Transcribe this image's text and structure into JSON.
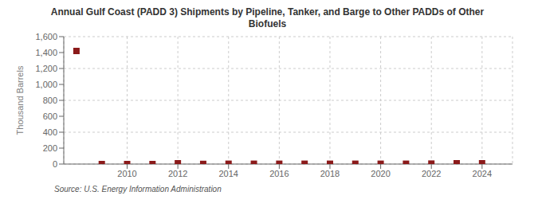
{
  "chart_data": {
    "type": "scatter",
    "title": "Annual Gulf Coast (PADD 3) Shipments by Pipeline, Tanker, and Barge to Other PADDs of Other\nBiofuels",
    "ylabel": "Thousand Barrels",
    "annotations": [
      "Source: U.S. Energy Information Administration"
    ],
    "x": [
      2008,
      2009,
      2010,
      2011,
      2012,
      2013,
      2014,
      2015,
      2016,
      2017,
      2018,
      2019,
      2020,
      2021,
      2022,
      2023,
      2024
    ],
    "values": [
      1420,
      0,
      0,
      0,
      10,
      2,
      4,
      4,
      4,
      4,
      4,
      4,
      4,
      4,
      6,
      10,
      10
    ],
    "color": "#8b1a1a",
    "marker": "square",
    "line_style": "none",
    "xlim": [
      2007.5,
      2025.2
    ],
    "xticks": [
      2010,
      2012,
      2014,
      2016,
      2018,
      2020,
      2022,
      2024
    ],
    "ylim": [
      0,
      1600
    ],
    "yticks": [
      0,
      200,
      400,
      600,
      800,
      {
        "value": 1000,
        "label": "1,000"
      },
      {
        "value": 1200,
        "label": "1,200"
      },
      {
        "value": 1400,
        "label": "1,400"
      },
      {
        "value": 1600,
        "label": "1,600"
      }
    ],
    "grid": true
  }
}
